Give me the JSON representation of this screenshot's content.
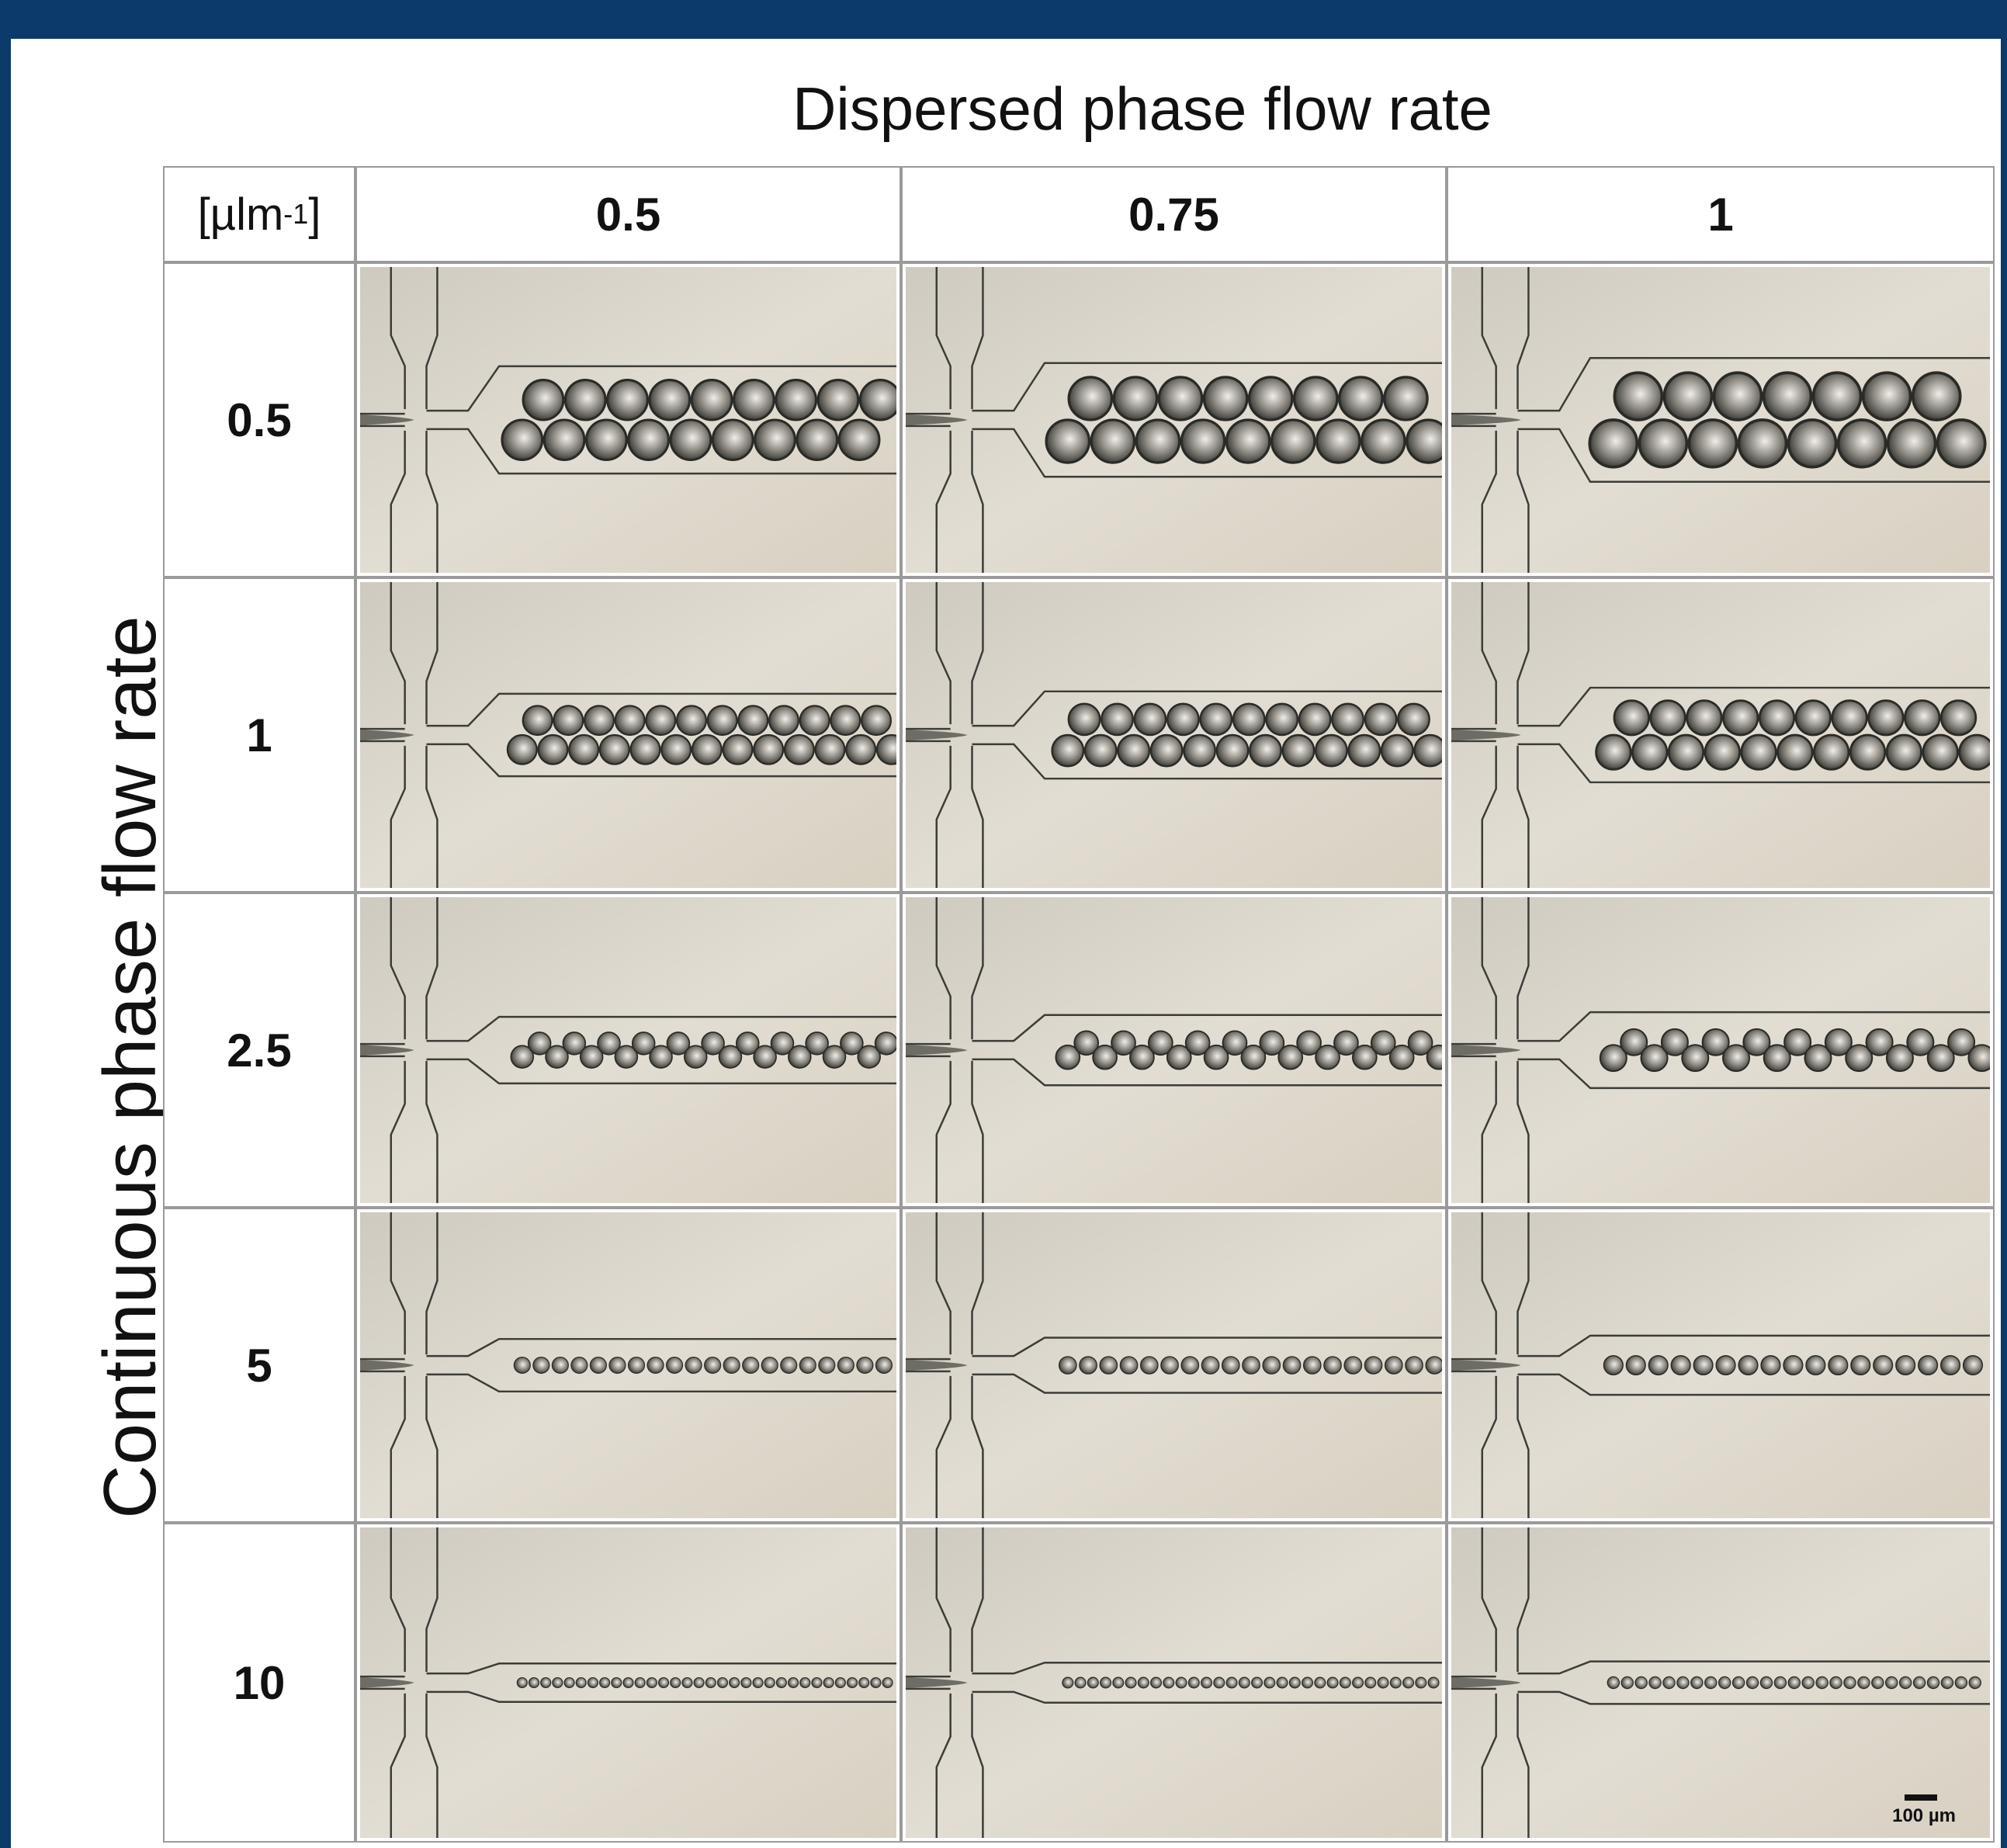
{
  "figure": {
    "column_axis_title": "Dispersed phase flow rate",
    "row_axis_title": "Continuous phase flow rate",
    "unit_label": "[µlm",
    "unit_exponent": "-1",
    "unit_close": "]",
    "columns": [
      "0.5",
      "0.75",
      "1"
    ],
    "rows": [
      "0.5",
      "1",
      "2.5",
      "5",
      "10"
    ],
    "scale_bar": "100 µm",
    "colors": {
      "frame": "#0b3a6b",
      "image_background": "#dcd6ca",
      "droplet": "#4a4a44"
    },
    "panels_description_kind": "micrograph"
  }
}
